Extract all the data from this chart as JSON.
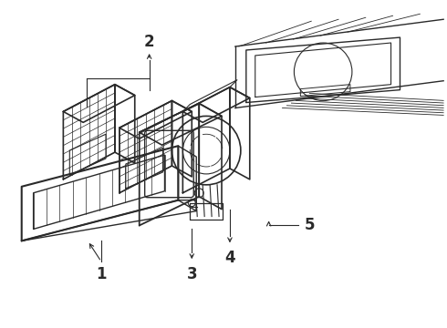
{
  "bg_color": "#ffffff",
  "line_color": "#2a2a2a",
  "fig_width": 4.9,
  "fig_height": 3.6,
  "dpi": 100,
  "label_fontsize": 12,
  "label_fontweight": "bold"
}
